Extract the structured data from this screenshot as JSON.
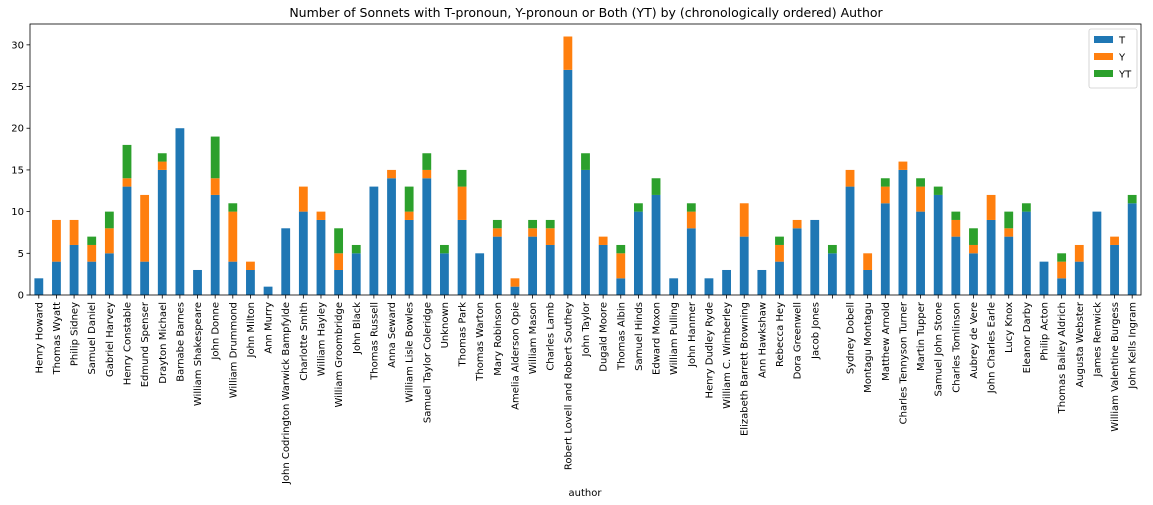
{
  "chart_data": {
    "type": "bar",
    "stacked": true,
    "title": "Number of Sonnets with T-pronoun, Y-pronoun or Both (YT) by (chronologically ordered) Author",
    "xlabel": "author",
    "ylabel": "",
    "ylim": [
      0,
      32.5
    ],
    "yticks": [
      0,
      5,
      10,
      15,
      20,
      25,
      30
    ],
    "grid": false,
    "legend": "top-right",
    "categories": [
      "Henry Howard",
      "Thomas Wyatt",
      "Philip Sidney",
      "Samuel Daniel",
      "Gabriel Harvey",
      "Henry Constable",
      "Edmund Spenser",
      "Drayton Michael",
      "Barnabe Barnes",
      "William Shakespeare",
      "John Donne",
      "William Drummond",
      "John Milton",
      "Ann Murry",
      "John Codrington Warwick Bampfylde",
      "Charlotte Smith",
      "William Hayley",
      "William Groombridge",
      "John Black",
      "Thomas Russell",
      "Anna Seward",
      "William Lisle Bowles",
      "Samuel Taylor Coleridge",
      "Unknown",
      "Thomas Park",
      "Thomas Warton",
      "Mary Robinson",
      "Amelia Alderson Opie",
      "William Mason",
      "Charles Lamb",
      "Robert Lovell and Robert Southey",
      "John Taylor",
      "Dugald Moore",
      "Thomas Albin",
      "Samuel Hinds",
      "Edward Moxon",
      "William Pulling",
      "John Hanmer",
      "Henry Dudley Ryde",
      "William C. Wimberley",
      "Elizabeth Barrett Browning",
      "Ann Hawkshaw",
      "Rebecca Hey",
      "Dora Greenwell",
      "Jacob Jones",
      "",
      "Sydney Dobell",
      "Montagu Montagu",
      "Matthew Arnold",
      "Charles Tennyson Turner",
      "Martin Tupper",
      "Samuel John Stone",
      "Charles Tomlinson",
      "Aubrey de Vere",
      "John Charles Earle",
      "Lucy Knox",
      "Eleanor Darby",
      "Philip Acton",
      "Thomas Bailey Aldrich",
      "Augusta Webster",
      "James Renwick",
      "William Valentine Burgess",
      "John Kells Ingram"
    ],
    "series": [
      {
        "name": "T",
        "color": "#1f77b4",
        "values": [
          2,
          4,
          6,
          4,
          5,
          13,
          4,
          15,
          20,
          3,
          12,
          4,
          3,
          1,
          8,
          10,
          9,
          3,
          5,
          13,
          14,
          9,
          14,
          5,
          9,
          5,
          7,
          1,
          7,
          6,
          27,
          15,
          6,
          2,
          10,
          12,
          2,
          8,
          2,
          3,
          7,
          3,
          4,
          8,
          9,
          5,
          13,
          3,
          11,
          15,
          10,
          12,
          7,
          5,
          9,
          7,
          10,
          4,
          2,
          4,
          10,
          6,
          11
        ]
      },
      {
        "name": "Y",
        "color": "#ff7f0e",
        "values": [
          0,
          5,
          3,
          2,
          3,
          1,
          8,
          1,
          0,
          0,
          2,
          6,
          1,
          0,
          0,
          3,
          1,
          2,
          0,
          0,
          1,
          1,
          1,
          0,
          4,
          0,
          1,
          1,
          1,
          2,
          4,
          0,
          1,
          3,
          0,
          0,
          0,
          2,
          0,
          0,
          4,
          0,
          2,
          1,
          0,
          0,
          2,
          2,
          2,
          1,
          3,
          0,
          2,
          1,
          3,
          1,
          0,
          0,
          2,
          2,
          0,
          1,
          0
        ]
      },
      {
        "name": "YT",
        "color": "#2ca02c",
        "values": [
          0,
          0,
          0,
          1,
          2,
          4,
          0,
          1,
          0,
          0,
          5,
          1,
          0,
          0,
          0,
          0,
          0,
          3,
          1,
          0,
          0,
          3,
          2,
          1,
          2,
          0,
          1,
          0,
          1,
          1,
          0,
          2,
          0,
          1,
          1,
          2,
          0,
          1,
          0,
          0,
          0,
          0,
          1,
          0,
          0,
          1,
          0,
          0,
          1,
          0,
          1,
          1,
          1,
          2,
          0,
          2,
          1,
          0,
          1,
          0,
          0,
          0,
          1
        ]
      }
    ]
  }
}
